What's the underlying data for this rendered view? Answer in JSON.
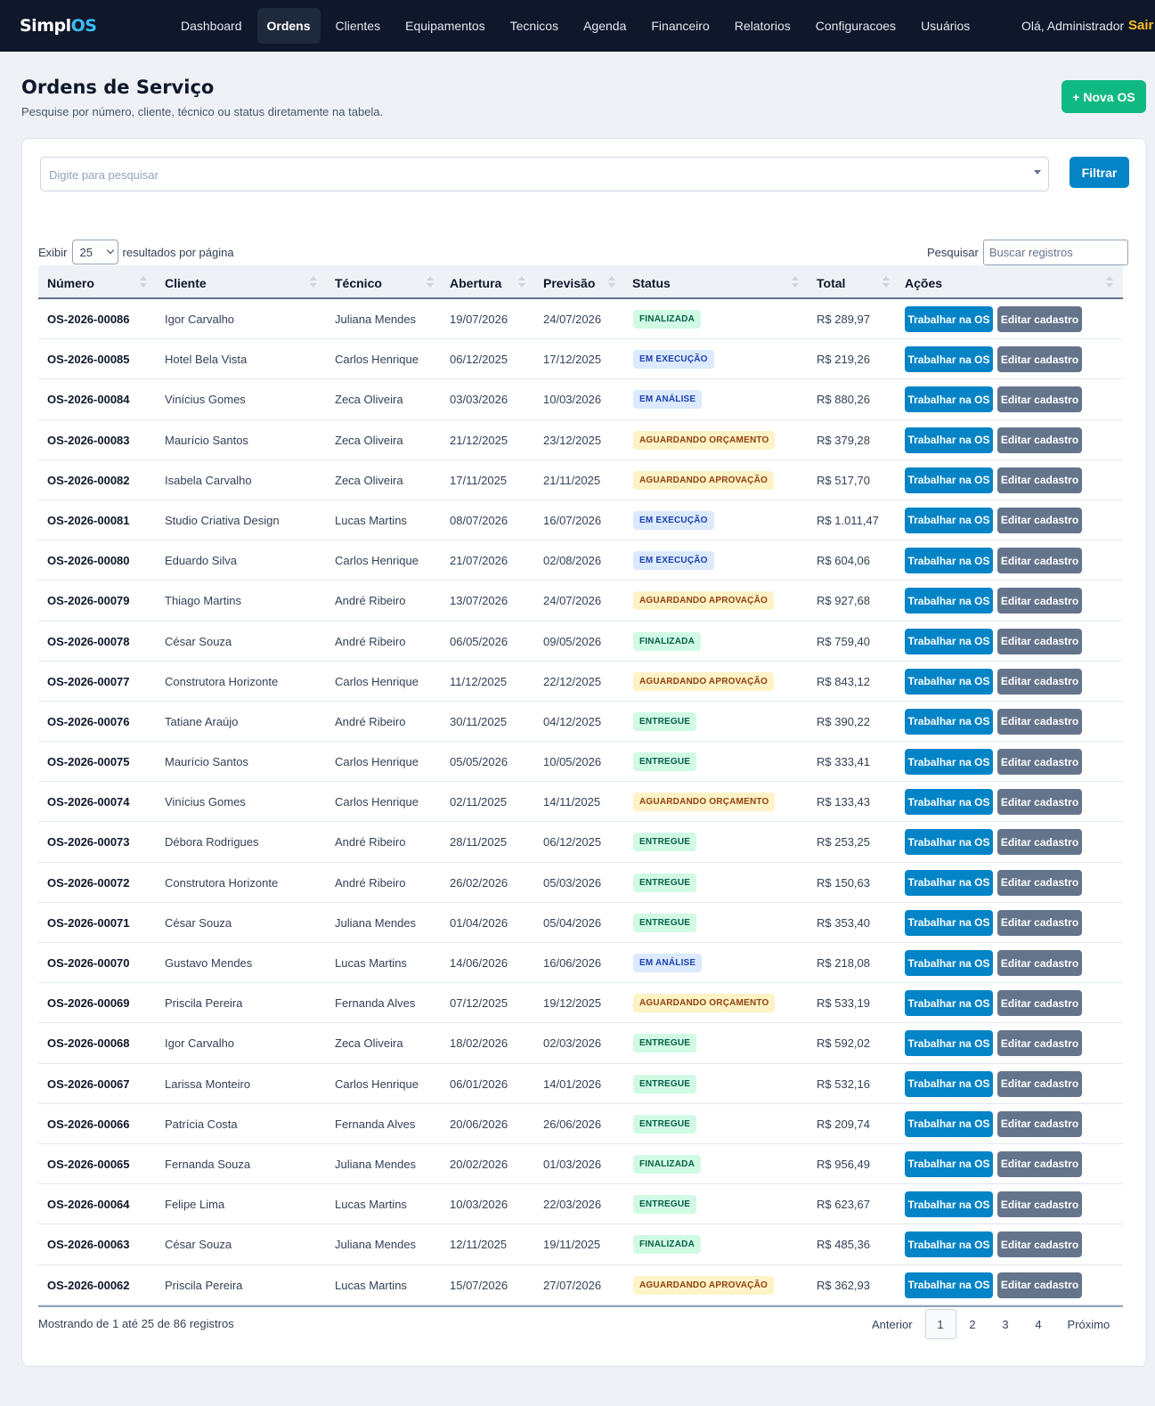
{
  "brand": {
    "part1": "Simpl",
    "part2": "OS"
  },
  "nav": {
    "items": [
      "Dashboard",
      "Ordens",
      "Clientes",
      "Equipamentos",
      "Tecnicos",
      "Agenda",
      "Financeiro",
      "Relatorios",
      "Configuracoes",
      "Usuários"
    ],
    "active": "Ordens",
    "greeting": "Olá, Administrador",
    "logout": "Sair"
  },
  "header": {
    "title": "Ordens de Serviço",
    "subtitle": "Pesquise por número, cliente, técnico ou status diretamente na tabela.",
    "new_button": "+ Nova OS"
  },
  "filter": {
    "placeholder": "Digite para pesquisar",
    "button": "Filtrar"
  },
  "table_controls": {
    "show_label": "Exibir",
    "page_length": "25",
    "per_page_label": "resultados por página",
    "search_label": "Pesquisar",
    "search_placeholder": "Buscar registros"
  },
  "columns": [
    "Número",
    "Cliente",
    "Técnico",
    "Abertura",
    "Previsão",
    "Status",
    "Total",
    "Ações"
  ],
  "actions": {
    "work": "Trabalhar na OS",
    "edit": "Editar cadastro"
  },
  "colors": {
    "green": "#10b981",
    "blue": "#0284c7",
    "gray": "#64748b",
    "navbar": "#0f172a"
  },
  "rows": [
    {
      "numero": "OS-2026-00086",
      "cliente": "Igor Carvalho",
      "tecnico": "Juliana Mendes",
      "abertura": "19/07/2026",
      "previsao": "24/07/2026",
      "status": "FINALIZADA",
      "total": "R$ 289,97"
    },
    {
      "numero": "OS-2026-00085",
      "cliente": "Hotel Bela Vista",
      "tecnico": "Carlos Henrique",
      "abertura": "06/12/2025",
      "previsao": "17/12/2025",
      "status": "EM EXECUÇÃO",
      "total": "R$ 219,26"
    },
    {
      "numero": "OS-2026-00084",
      "cliente": "Vinícius Gomes",
      "tecnico": "Zeca Oliveira",
      "abertura": "03/03/2026",
      "previsao": "10/03/2026",
      "status": "EM ANÁLISE",
      "total": "R$ 880,26"
    },
    {
      "numero": "OS-2026-00083",
      "cliente": "Maurício Santos",
      "tecnico": "Zeca Oliveira",
      "abertura": "21/12/2025",
      "previsao": "23/12/2025",
      "status": "AGUARDANDO ORÇAMENTO",
      "total": "R$ 379,28"
    },
    {
      "numero": "OS-2026-00082",
      "cliente": "Isabela Carvalho",
      "tecnico": "Zeca Oliveira",
      "abertura": "17/11/2025",
      "previsao": "21/11/2025",
      "status": "AGUARDANDO APROVAÇÃO",
      "total": "R$ 517,70"
    },
    {
      "numero": "OS-2026-00081",
      "cliente": "Studio Criativa Design",
      "tecnico": "Lucas Martins",
      "abertura": "08/07/2026",
      "previsao": "16/07/2026",
      "status": "EM EXECUÇÃO",
      "total": "R$ 1.011,47"
    },
    {
      "numero": "OS-2026-00080",
      "cliente": "Eduardo Silva",
      "tecnico": "Carlos Henrique",
      "abertura": "21/07/2026",
      "previsao": "02/08/2026",
      "status": "EM EXECUÇÃO",
      "total": "R$ 604,06"
    },
    {
      "numero": "OS-2026-00079",
      "cliente": "Thiago Martins",
      "tecnico": "André Ribeiro",
      "abertura": "13/07/2026",
      "previsao": "24/07/2026",
      "status": "AGUARDANDO APROVAÇÃO",
      "total": "R$ 927,68"
    },
    {
      "numero": "OS-2026-00078",
      "cliente": "César Souza",
      "tecnico": "André Ribeiro",
      "abertura": "06/05/2026",
      "previsao": "09/05/2026",
      "status": "FINALIZADA",
      "total": "R$ 759,40"
    },
    {
      "numero": "OS-2026-00077",
      "cliente": "Construtora Horizonte",
      "tecnico": "Carlos Henrique",
      "abertura": "11/12/2025",
      "previsao": "22/12/2025",
      "status": "AGUARDANDO APROVAÇÃO",
      "total": "R$ 843,12"
    },
    {
      "numero": "OS-2026-00076",
      "cliente": "Tatiane Araújo",
      "tecnico": "André Ribeiro",
      "abertura": "30/11/2025",
      "previsao": "04/12/2025",
      "status": "ENTREGUE",
      "total": "R$ 390,22"
    },
    {
      "numero": "OS-2026-00075",
      "cliente": "Maurício Santos",
      "tecnico": "Carlos Henrique",
      "abertura": "05/05/2026",
      "previsao": "10/05/2026",
      "status": "ENTREGUE",
      "total": "R$ 333,41"
    },
    {
      "numero": "OS-2026-00074",
      "cliente": "Vinícius Gomes",
      "tecnico": "Carlos Henrique",
      "abertura": "02/11/2025",
      "previsao": "14/11/2025",
      "status": "AGUARDANDO ORÇAMENTO",
      "total": "R$ 133,43"
    },
    {
      "numero": "OS-2026-00073",
      "cliente": "Débora Rodrigues",
      "tecnico": "André Ribeiro",
      "abertura": "28/11/2025",
      "previsao": "06/12/2025",
      "status": "ENTREGUE",
      "total": "R$ 253,25"
    },
    {
      "numero": "OS-2026-00072",
      "cliente": "Construtora Horizonte",
      "tecnico": "André Ribeiro",
      "abertura": "26/02/2026",
      "previsao": "05/03/2026",
      "status": "ENTREGUE",
      "total": "R$ 150,63"
    },
    {
      "numero": "OS-2026-00071",
      "cliente": "César Souza",
      "tecnico": "Juliana Mendes",
      "abertura": "01/04/2026",
      "previsao": "05/04/2026",
      "status": "ENTREGUE",
      "total": "R$ 353,40"
    },
    {
      "numero": "OS-2026-00070",
      "cliente": "Gustavo Mendes",
      "tecnico": "Lucas Martins",
      "abertura": "14/06/2026",
      "previsao": "16/06/2026",
      "status": "EM ANÁLISE",
      "total": "R$ 218,08"
    },
    {
      "numero": "OS-2026-00069",
      "cliente": "Priscila Pereira",
      "tecnico": "Fernanda Alves",
      "abertura": "07/12/2025",
      "previsao": "19/12/2025",
      "status": "AGUARDANDO ORÇAMENTO",
      "total": "R$ 533,19"
    },
    {
      "numero": "OS-2026-00068",
      "cliente": "Igor Carvalho",
      "tecnico": "Zeca Oliveira",
      "abertura": "18/02/2026",
      "previsao": "02/03/2026",
      "status": "ENTREGUE",
      "total": "R$ 592,02"
    },
    {
      "numero": "OS-2026-00067",
      "cliente": "Larissa Monteiro",
      "tecnico": "Carlos Henrique",
      "abertura": "06/01/2026",
      "previsao": "14/01/2026",
      "status": "ENTREGUE",
      "total": "R$ 532,16"
    },
    {
      "numero": "OS-2026-00066",
      "cliente": "Patrícia Costa",
      "tecnico": "Fernanda Alves",
      "abertura": "20/06/2026",
      "previsao": "26/06/2026",
      "status": "ENTREGUE",
      "total": "R$ 209,74"
    },
    {
      "numero": "OS-2026-00065",
      "cliente": "Fernanda Souza",
      "tecnico": "Juliana Mendes",
      "abertura": "20/02/2026",
      "previsao": "01/03/2026",
      "status": "FINALIZADA",
      "total": "R$ 956,49"
    },
    {
      "numero": "OS-2026-00064",
      "cliente": "Felipe Lima",
      "tecnico": "Lucas Martins",
      "abertura": "10/03/2026",
      "previsao": "22/03/2026",
      "status": "ENTREGUE",
      "total": "R$ 623,67"
    },
    {
      "numero": "OS-2026-00063",
      "cliente": "César Souza",
      "tecnico": "Juliana Mendes",
      "abertura": "12/11/2025",
      "previsao": "19/11/2025",
      "status": "FINALIZADA",
      "total": "R$ 485,36"
    },
    {
      "numero": "OS-2026-00062",
      "cliente": "Priscila Pereira",
      "tecnico": "Lucas Martins",
      "abertura": "15/07/2026",
      "previsao": "27/07/2026",
      "status": "AGUARDANDO APROVAÇÃO",
      "total": "R$ 362,93"
    }
  ],
  "footer": {
    "info": "Mostrando de 1 até 25 de 86 registros",
    "prev": "Anterior",
    "pages": [
      "1",
      "2",
      "3",
      "4"
    ],
    "current_page": "1",
    "next": "Próximo"
  }
}
